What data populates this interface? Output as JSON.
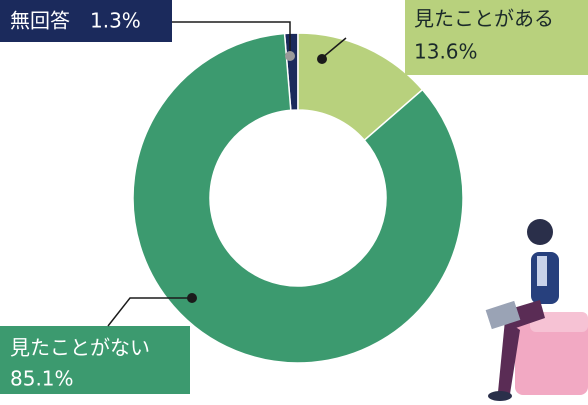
{
  "chart_data": {
    "type": "donut",
    "categories": [
      "無回答",
      "見たことがある",
      "見たことがない"
    ],
    "values": [
      1.3,
      13.6,
      85.1
    ],
    "value_labels": [
      "1.3%",
      "13.6%",
      "85.1%"
    ],
    "colors": [
      "#1b2a5c",
      "#b8d17d",
      "#3c9a6f"
    ]
  }
}
